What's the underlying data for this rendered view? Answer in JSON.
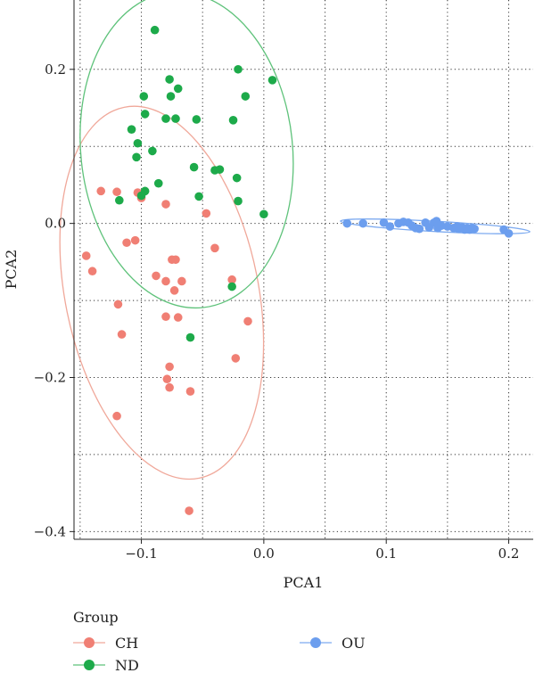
{
  "chart_data": {
    "type": "scatter",
    "title": "",
    "xlabel": "PCA1",
    "ylabel": "PCA2",
    "xlim": [
      -0.155,
      0.22
    ],
    "ylim": [
      -0.41,
      0.29
    ],
    "x_ticks": [
      -0.1,
      0.0,
      0.1,
      0.2
    ],
    "y_ticks": [
      0.2,
      0.0,
      -0.2,
      -0.4
    ],
    "x_tick_labels": [
      "−0.1",
      "0.0",
      "0.1",
      "0.2"
    ],
    "y_tick_labels": [
      "0.2",
      "0.0",
      "−0.2",
      "−0.4"
    ],
    "grid": "dotted",
    "ellipses": true,
    "legend": {
      "title": "Group",
      "position": "bottom"
    },
    "series": [
      {
        "name": "CH",
        "color": "#F07F74",
        "ellipse_color": "#F0A89A",
        "points": [
          [
            -0.133,
            0.042
          ],
          [
            -0.12,
            0.041
          ],
          [
            -0.1,
            0.033
          ],
          [
            -0.103,
            0.04
          ],
          [
            -0.08,
            0.025
          ],
          [
            -0.047,
            0.013
          ],
          [
            -0.145,
            -0.042
          ],
          [
            -0.14,
            -0.062
          ],
          [
            -0.112,
            -0.025
          ],
          [
            -0.105,
            -0.022
          ],
          [
            -0.075,
            -0.047
          ],
          [
            -0.072,
            -0.047
          ],
          [
            -0.04,
            -0.032
          ],
          [
            -0.088,
            -0.068
          ],
          [
            -0.08,
            -0.075
          ],
          [
            -0.067,
            -0.075
          ],
          [
            -0.073,
            -0.087
          ],
          [
            -0.026,
            -0.073
          ],
          [
            -0.119,
            -0.105
          ],
          [
            -0.013,
            -0.127
          ],
          [
            -0.116,
            -0.144
          ],
          [
            -0.08,
            -0.121
          ],
          [
            -0.07,
            -0.122
          ],
          [
            -0.023,
            -0.175
          ],
          [
            -0.077,
            -0.186
          ],
          [
            -0.079,
            -0.202
          ],
          [
            -0.077,
            -0.213
          ],
          [
            -0.06,
            -0.218
          ],
          [
            -0.12,
            -0.25
          ],
          [
            -0.061,
            -0.373
          ]
        ]
      },
      {
        "name": "ND",
        "color": "#1DAA4A",
        "ellipse_color": "#5EC27A",
        "points": [
          [
            -0.089,
            0.251
          ],
          [
            -0.021,
            0.2
          ],
          [
            0.007,
            0.186
          ],
          [
            -0.077,
            0.187
          ],
          [
            -0.07,
            0.175
          ],
          [
            -0.098,
            0.165
          ],
          [
            -0.076,
            0.165
          ],
          [
            -0.015,
            0.165
          ],
          [
            -0.097,
            0.142
          ],
          [
            -0.08,
            0.136
          ],
          [
            -0.072,
            0.136
          ],
          [
            -0.055,
            0.135
          ],
          [
            -0.025,
            0.134
          ],
          [
            -0.108,
            0.122
          ],
          [
            -0.103,
            0.104
          ],
          [
            -0.091,
            0.094
          ],
          [
            -0.104,
            0.086
          ],
          [
            -0.057,
            0.073
          ],
          [
            -0.036,
            0.07
          ],
          [
            -0.04,
            0.069
          ],
          [
            -0.022,
            0.059
          ],
          [
            -0.086,
            0.052
          ],
          [
            -0.097,
            0.042
          ],
          [
            -0.1,
            0.036
          ],
          [
            -0.118,
            0.03
          ],
          [
            -0.053,
            0.035
          ],
          [
            -0.021,
            0.029
          ],
          [
            0.0,
            0.012
          ],
          [
            -0.026,
            -0.082
          ],
          [
            -0.06,
            -0.148
          ]
        ]
      },
      {
        "name": "OU",
        "color": "#6C9EEE",
        "ellipse_color": "#7EABF0",
        "points": [
          [
            0.068,
            0.0
          ],
          [
            0.081,
            0.0
          ],
          [
            0.098,
            0.001
          ],
          [
            0.103,
            -0.004
          ],
          [
            0.11,
            0.0
          ],
          [
            0.114,
            0.002
          ],
          [
            0.118,
            0.001
          ],
          [
            0.121,
            -0.003
          ],
          [
            0.124,
            -0.006
          ],
          [
            0.132,
            0.001
          ],
          [
            0.135,
            -0.005
          ],
          [
            0.139,
            0.001
          ],
          [
            0.141,
            0.003
          ],
          [
            0.142,
            -0.006
          ],
          [
            0.15,
            -0.004
          ],
          [
            0.155,
            -0.006
          ],
          [
            0.159,
            -0.007
          ],
          [
            0.162,
            -0.005
          ],
          [
            0.164,
            -0.008
          ],
          [
            0.166,
            -0.006
          ],
          [
            0.168,
            -0.008
          ],
          [
            0.17,
            -0.006
          ],
          [
            0.172,
            -0.007
          ],
          [
            0.196,
            -0.008
          ],
          [
            0.2,
            -0.013
          ],
          [
            0.127,
            -0.007
          ],
          [
            0.158,
            -0.004
          ],
          [
            0.145,
            -0.003
          ]
        ]
      }
    ]
  }
}
